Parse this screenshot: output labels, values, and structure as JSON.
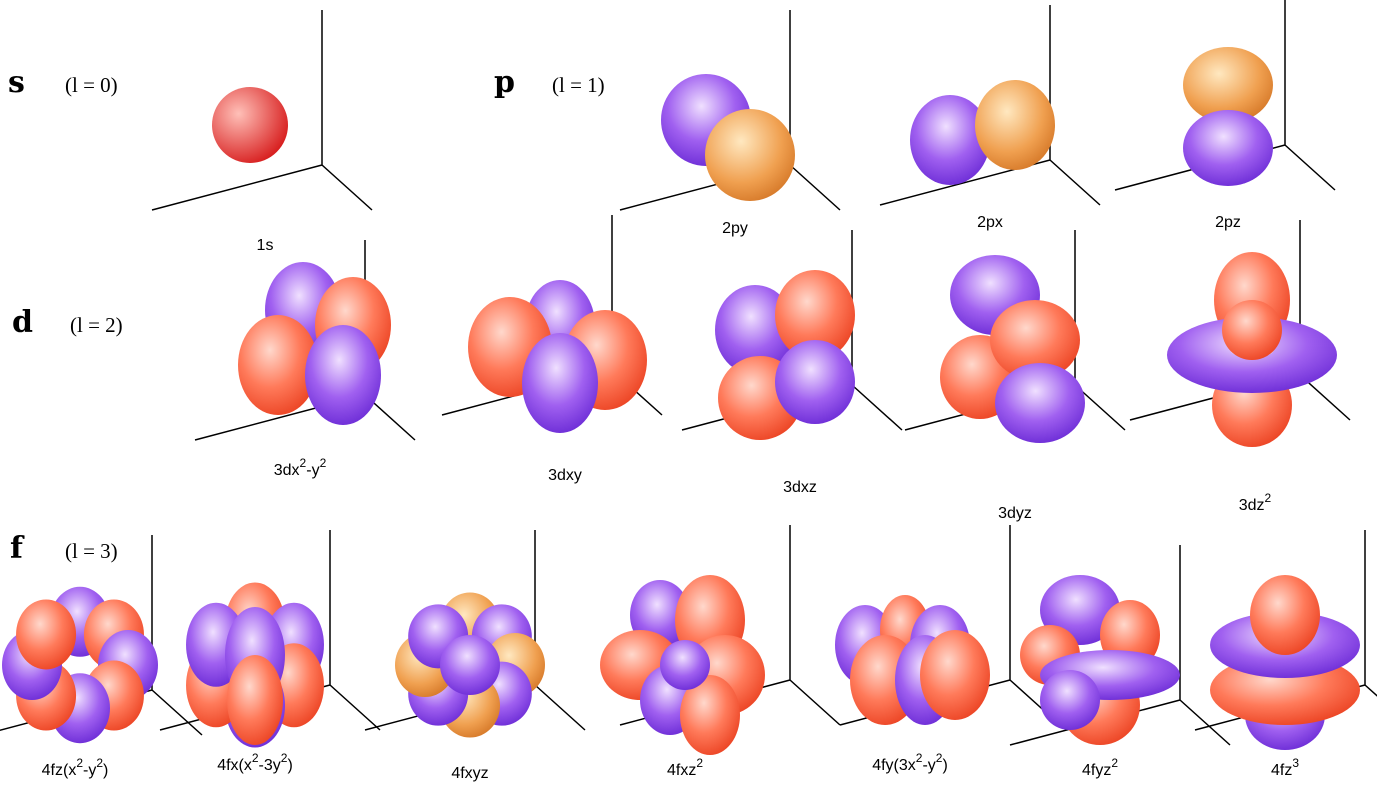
{
  "rows": [
    {
      "letter": "s",
      "quantum": "(l = 0)",
      "orbitals": [
        {
          "label": [
            "1s"
          ]
        }
      ]
    },
    {
      "letter": "p",
      "quantum": "(l = 1)",
      "orbitals": [
        {
          "label": [
            "2py"
          ]
        },
        {
          "label": [
            "2px"
          ]
        },
        {
          "label": [
            "2pz"
          ]
        }
      ]
    },
    {
      "letter": "d",
      "quantum": "(l = 2)",
      "orbitals": [
        {
          "label": [
            "3dx",
            "2",
            "-y",
            "2"
          ]
        },
        {
          "label": [
            "3dxy"
          ]
        },
        {
          "label": [
            "3dxz"
          ]
        },
        {
          "label": [
            "3dyz"
          ]
        },
        {
          "label": [
            "3dz",
            "2"
          ]
        }
      ]
    },
    {
      "letter": "f",
      "quantum": "(l = 3)",
      "orbitals": [
        {
          "label": [
            "4fz(x",
            "2",
            "-y",
            "2",
            ")"
          ]
        },
        {
          "label": [
            "4fx(x",
            "2",
            "-3y",
            "2",
            ")"
          ]
        },
        {
          "label": [
            "4fxyz"
          ]
        },
        {
          "label": [
            "4fxz",
            "2"
          ]
        },
        {
          "label": [
            "4fy(3x",
            "2",
            "-y",
            "2",
            ")"
          ]
        },
        {
          "label": [
            "4fyz",
            "2"
          ]
        },
        {
          "label": [
            "4fz",
            "3"
          ]
        }
      ]
    }
  ]
}
